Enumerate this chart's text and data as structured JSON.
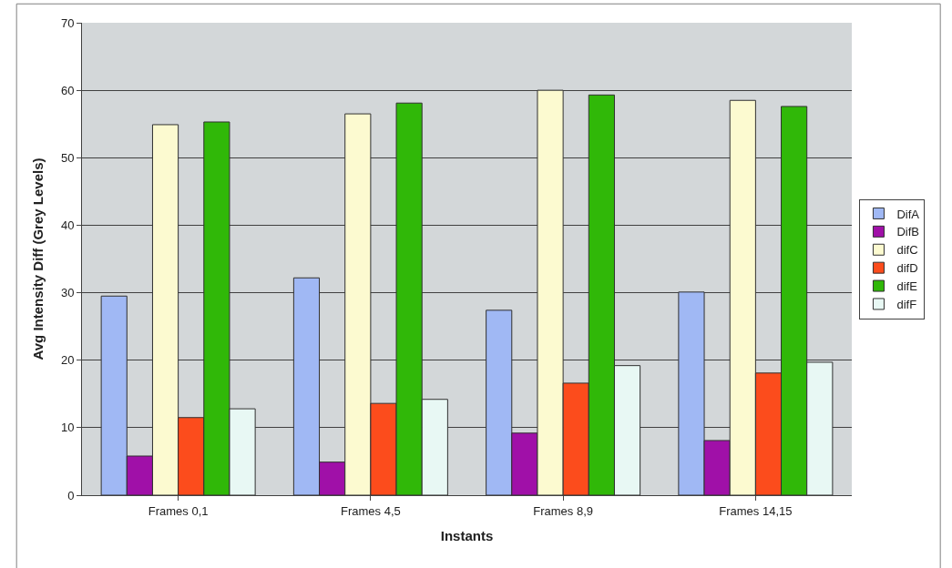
{
  "chart_data": {
    "type": "bar",
    "xlabel": "Instants",
    "ylabel": "Avg Intensity Diff (Grey Levels)",
    "categories": [
      "Frames 0,1",
      "Frames 4,5",
      "Frames 8,9",
      "Frames 14,15"
    ],
    "series": [
      {
        "name": "DifA",
        "color": "#a0b8f4",
        "values": [
          29.5,
          32.2,
          27.4,
          30.1
        ]
      },
      {
        "name": "DifB",
        "color": "#a010a8",
        "values": [
          5.8,
          4.9,
          9.2,
          8.1
        ]
      },
      {
        "name": "difC",
        "color": "#fcfad0",
        "values": [
          54.9,
          56.5,
          60.0,
          58.5
        ]
      },
      {
        "name": "difD",
        "color": "#fc4c1c",
        "values": [
          11.5,
          13.6,
          16.6,
          18.1
        ]
      },
      {
        "name": "difE",
        "color": "#30b808",
        "values": [
          55.3,
          58.1,
          59.3,
          57.6
        ]
      },
      {
        "name": "difF",
        "color": "#e8f8f4",
        "values": [
          12.8,
          14.2,
          19.2,
          19.7
        ]
      }
    ],
    "ylim": [
      0,
      70
    ],
    "yticks": [
      0,
      10,
      20,
      30,
      40,
      50,
      60,
      70
    ],
    "grid": "y",
    "legend": "right"
  }
}
